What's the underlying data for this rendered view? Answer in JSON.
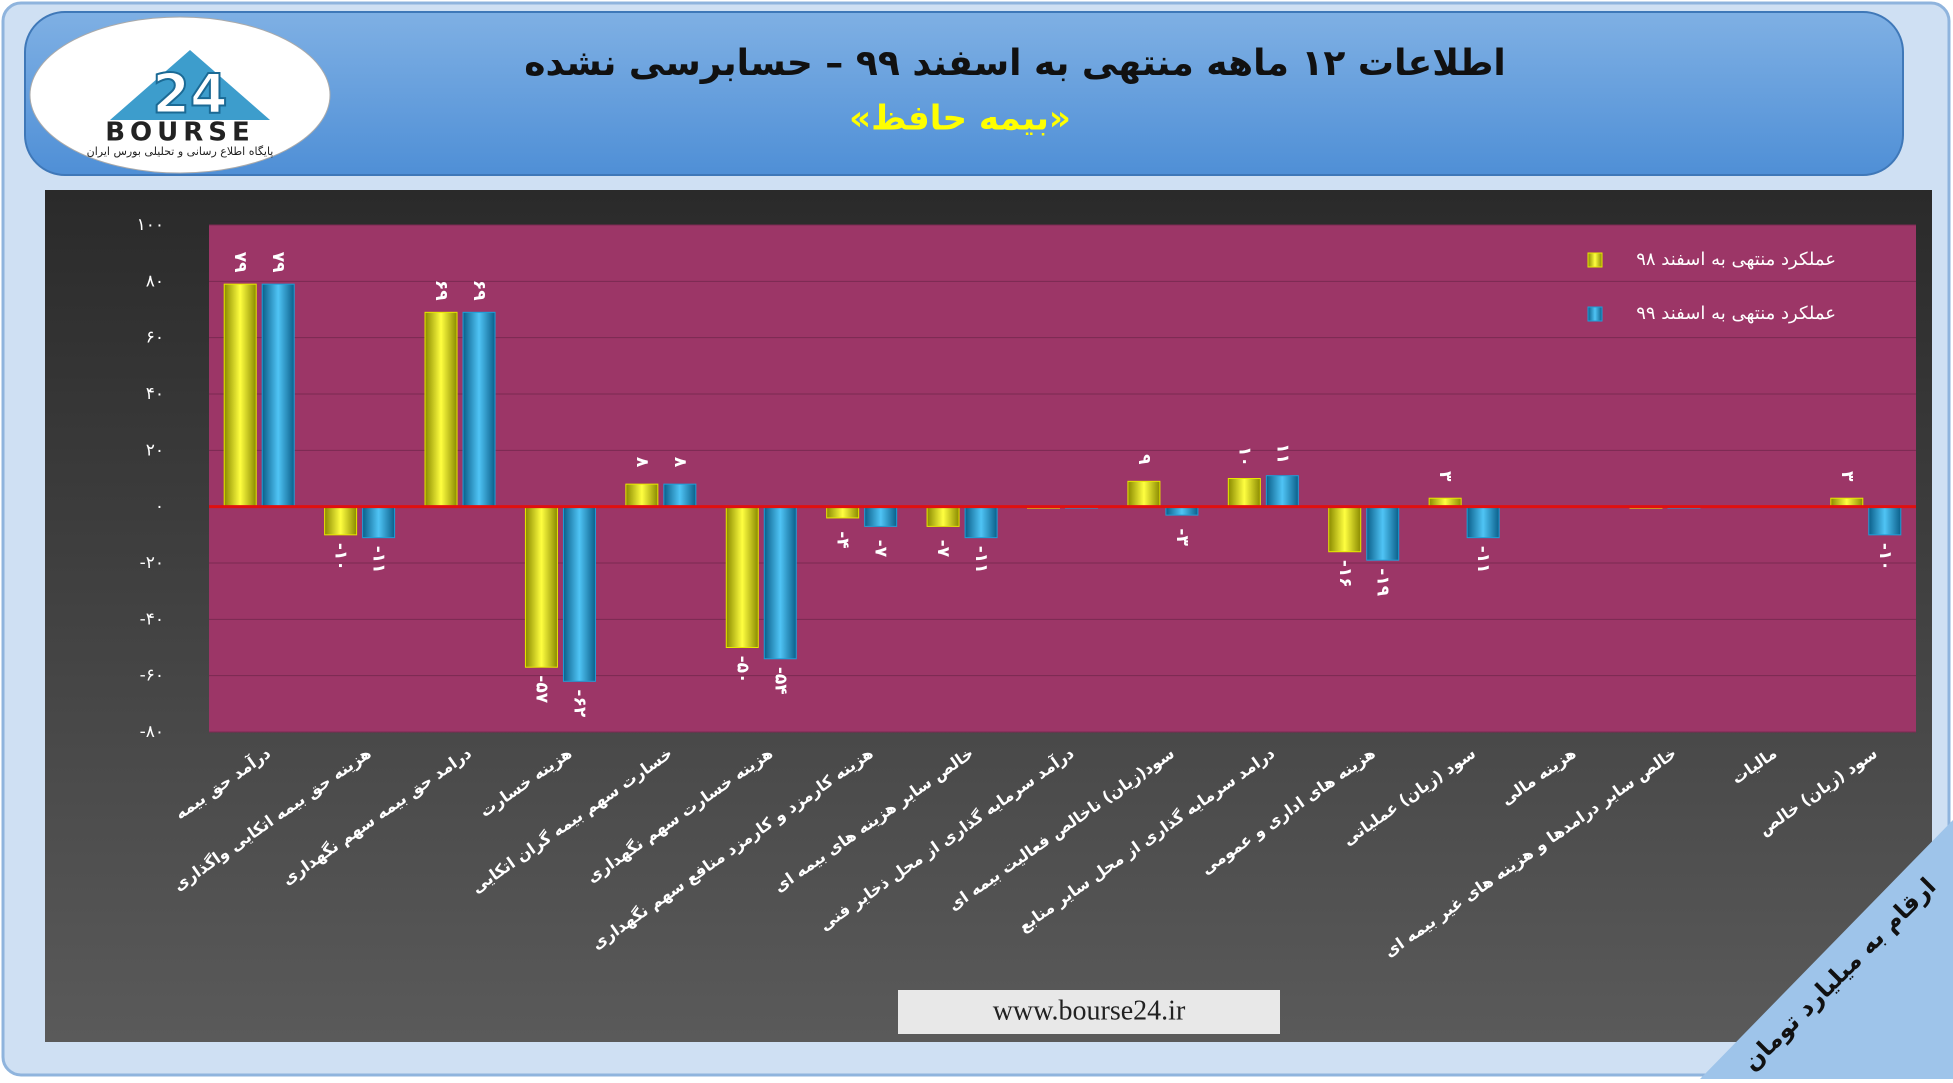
{
  "header": {
    "logo_text": "BOURSE",
    "logo_number": "24",
    "logo_caption": "پایگاه اطلاع رسانی و تحلیلی بورس ایران"
  },
  "footer": {
    "url": "www.bourse24.ir",
    "unit_note": "ارقام به میلیارد تومان"
  },
  "chart_data": {
    "type": "bar",
    "title": "اطلاعات ۱۲ ماهه منتهی به اسفند ۹۹ – حسابرسی نشده",
    "subtitle": "«بیمه حافظ»",
    "categories": [
      "درآمد حق بیمه",
      "هزینه حق بیمه اتکایی واگذاری",
      "درامد حق بیمه سهم نگهداری",
      "هزینه خسارت",
      "خسارت سهم بیمه گران اتکایی",
      "هزینه خسارت سهم نگهداری",
      "هزینه کارمزد و کارمزد منافع سهم نگهداری",
      "خالص سایر هزینه های بیمه ای",
      "درآمد سرمایه گذاری از محل ذخایر فنی",
      "سود(زیان) ناخالص فعالیت بیمه ای",
      "درامد سرمایه گذاری از محل سایر منابع",
      "هزینه های اداری و عمومی",
      "سود (زیان) عملیاتی",
      "هزینه مالی",
      "خالص سایر درامدها و هزینه های غیر بیمه ای",
      "مالیات",
      "سود (زیان) خالص"
    ],
    "series": [
      {
        "name": "عملکرد منتهی به اسفند ۹۸",
        "color": "#e8e800",
        "values": [
          79,
          -10,
          69,
          -57,
          8,
          -50,
          -4,
          -7,
          0,
          9,
          10,
          -16,
          3,
          null,
          0,
          null,
          3
        ],
        "value_labels": [
          "۷۹",
          "-۱۰",
          "۶۹",
          "-۵۷",
          "۸",
          "-۵۰",
          "-۴",
          "-۷",
          null,
          "۹",
          "۱۰",
          "-۱۶",
          "۳",
          null,
          null,
          null,
          "۳"
        ]
      },
      {
        "name": "عملکرد منتهی به اسفند ۹۹",
        "color": "#1e9fd8",
        "values": [
          79,
          -11,
          69,
          -62,
          8,
          -54,
          -7,
          -11,
          0,
          -3,
          11,
          -19,
          -11,
          null,
          0,
          null,
          -10
        ],
        "value_labels": [
          "۷۹",
          "-۱۱",
          "۶۹",
          "-۶۲",
          "۸",
          "-۵۴",
          "-۷",
          "-۱۱",
          null,
          "-۳",
          "۱۱",
          "-۱۹",
          "-۱۱",
          null,
          null,
          null,
          "-۱۰"
        ]
      }
    ],
    "ylim": [
      -80,
      100
    ],
    "yticks": [
      {
        "value": -80,
        "label": "-۸۰"
      },
      {
        "value": -60,
        "label": "-۶۰"
      },
      {
        "value": -40,
        "label": "-۴۰"
      },
      {
        "value": -20,
        "label": "-۲۰"
      },
      {
        "value": 0,
        "label": "۰"
      },
      {
        "value": 20,
        "label": "۲۰"
      },
      {
        "value": 40,
        "label": "۴۰"
      },
      {
        "value": 60,
        "label": "۶۰"
      },
      {
        "value": 80,
        "label": "۸۰"
      },
      {
        "value": 100,
        "label": "۱۰۰"
      }
    ],
    "grid": true,
    "legend": "top-right"
  }
}
